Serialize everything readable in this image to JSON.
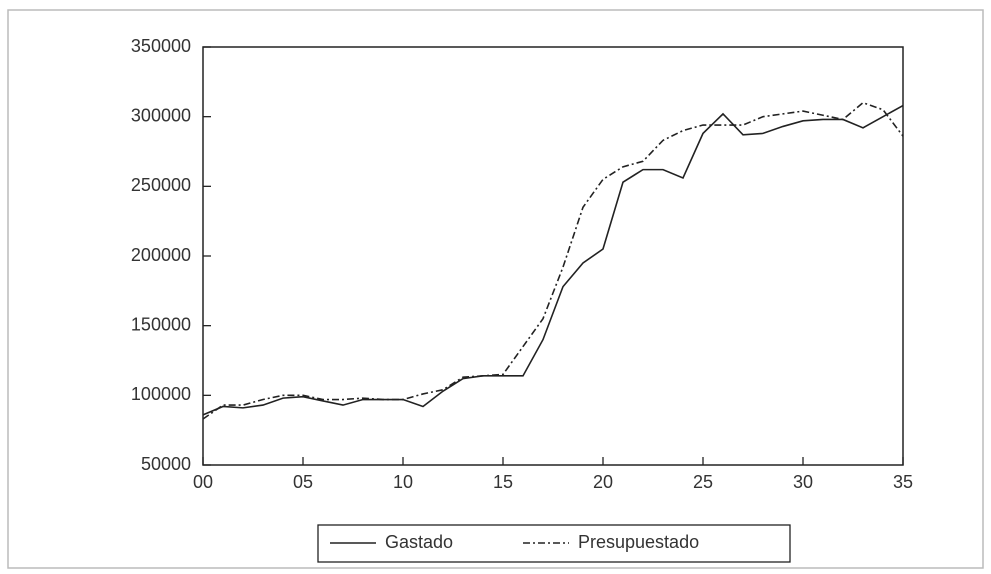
{
  "chart_data": {
    "type": "line",
    "x": [
      0,
      1,
      2,
      3,
      4,
      5,
      6,
      7,
      8,
      9,
      10,
      11,
      12,
      13,
      14,
      15,
      16,
      17,
      18,
      19,
      20,
      21,
      22,
      23,
      24,
      25,
      26,
      27,
      28,
      29,
      30,
      31,
      32,
      33,
      34,
      35
    ],
    "series": [
      {
        "name": "Gastado",
        "color": "#222222",
        "linestyle": "solid",
        "values": [
          86000,
          92000,
          91000,
          93000,
          98000,
          99000,
          96000,
          93000,
          97000,
          97000,
          97000,
          92000,
          103000,
          112000,
          114000,
          114000,
          114000,
          140000,
          178000,
          195000,
          205000,
          253000,
          262000,
          262000,
          256000,
          288000,
          302000,
          287000,
          288000,
          293000,
          297000,
          298000,
          298000,
          292000,
          300000,
          308000
        ]
      },
      {
        "name": "Presupuestado",
        "color": "#222222",
        "linestyle": "dashed",
        "values": [
          83000,
          93000,
          93000,
          97000,
          100000,
          100000,
          97000,
          97000,
          98000,
          97000,
          97000,
          101000,
          104000,
          113000,
          114000,
          115000,
          135000,
          155000,
          192000,
          235000,
          255000,
          264000,
          268000,
          283000,
          290000,
          294000,
          294000,
          294000,
          300000,
          302000,
          304000,
          301000,
          298000,
          310000,
          305000,
          286000
        ]
      }
    ],
    "xlim": [
      0,
      35
    ],
    "xticks": [
      {
        "value": 0,
        "label": "00"
      },
      {
        "value": 5,
        "label": "05"
      },
      10,
      15,
      20,
      25,
      30,
      35
    ],
    "ylim": [
      50000,
      350000
    ],
    "yticks": [
      50000,
      100000,
      150000,
      200000,
      250000,
      300000,
      350000
    ],
    "grid": false,
    "legend": "bottom"
  }
}
